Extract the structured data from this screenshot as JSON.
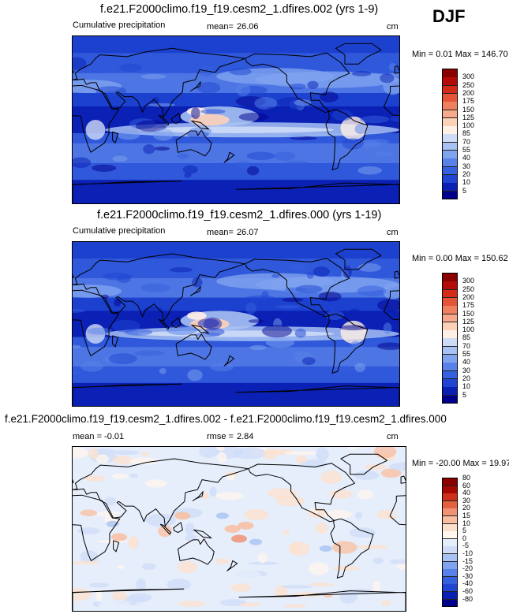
{
  "season": "DJF",
  "colors": {
    "precip": [
      "#00008c",
      "#0a1fb4",
      "#1f45d2",
      "#3560e0",
      "#5882ea",
      "#7fa3ef",
      "#a7c2f3",
      "#cfdcf8",
      "#fff0e6",
      "#fdd0b8",
      "#f9a98b",
      "#f07f5f",
      "#e55437",
      "#d52a18",
      "#b30c08",
      "#8a0000"
    ],
    "diff": [
      "#00008c",
      "#0a1fb4",
      "#1f45d2",
      "#3560e0",
      "#5882ea",
      "#7fa3ef",
      "#a7c2f3",
      "#cfdcf8",
      "#e4eefb",
      "#fff6ee",
      "#fde0cc",
      "#f9bd9f",
      "#f09274",
      "#e4623f",
      "#d0301a",
      "#a50800",
      "#8a0000"
    ]
  },
  "panels": [
    {
      "title": "f.e21.F2000climo.f19_f19.cesm2_1.dfires.002 (yrs 1-9)",
      "left_label": "Cumulative precipitation",
      "stat_label": "mean=",
      "stat_value": "26.06",
      "units": "cm",
      "minmax": "Min =   0.01 Max = 146.70"
    },
    {
      "title": "f.e21.F2000climo.f19_f19.cesm2_1.dfires.000 (yrs 1-19)",
      "left_label": "Cumulative precipitation",
      "stat_label": "mean=",
      "stat_value": "26.07",
      "units": "cm",
      "minmax": "Min =   0.00 Max = 150.62"
    },
    {
      "title": "f.e21.F2000climo.f19_f19.cesm2_1.dfires.002 - f.e21.F2000climo.f19_f19.cesm2_1.dfires.000",
      "left_label": "mean =  -0.01",
      "stat_label": "rmse =",
      "stat_value": "2.84",
      "units": "cm",
      "minmax": "Min = -20.00 Max =  19.97"
    }
  ],
  "chart_data": [
    {
      "type": "heatmap",
      "title": "f.e21.F2000climo.f19_f19.cesm2_1.dfires.002 (yrs 1-9)",
      "variable": "Cumulative precipitation",
      "units": "cm",
      "mean": 26.06,
      "min": 0.01,
      "max": 146.7,
      "colorbar_levels": [
        5,
        10,
        20,
        30,
        40,
        55,
        70,
        85,
        100,
        125,
        150,
        175,
        200,
        250,
        300
      ]
    },
    {
      "type": "heatmap",
      "title": "f.e21.F2000climo.f19_f19.cesm2_1.dfires.000 (yrs 1-19)",
      "variable": "Cumulative precipitation",
      "units": "cm",
      "mean": 26.07,
      "min": 0.0,
      "max": 150.62,
      "colorbar_levels": [
        5,
        10,
        20,
        30,
        40,
        55,
        70,
        85,
        100,
        125,
        150,
        175,
        200,
        250,
        300
      ]
    },
    {
      "type": "heatmap",
      "title": "f.e21.F2000climo.f19_f19.cesm2_1.dfires.002 - f.e21.F2000climo.f19_f19.cesm2_1.dfires.000",
      "units": "cm",
      "mean": -0.01,
      "rmse": 2.84,
      "min": -20.0,
      "max": 19.97,
      "colorbar_levels": [
        -80,
        -60,
        -40,
        -30,
        -20,
        -15,
        -10,
        -5,
        0,
        5,
        10,
        15,
        20,
        30,
        40,
        60,
        80
      ]
    }
  ]
}
